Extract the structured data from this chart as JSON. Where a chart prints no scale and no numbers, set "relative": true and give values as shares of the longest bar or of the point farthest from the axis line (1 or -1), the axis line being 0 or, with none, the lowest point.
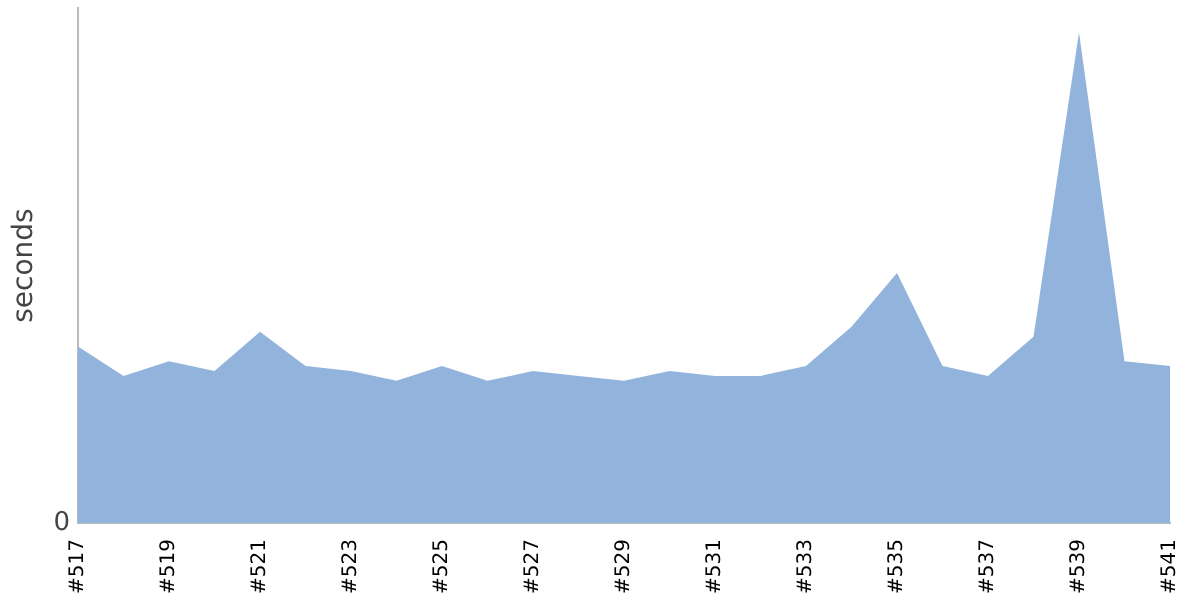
{
  "chart_data": {
    "type": "area",
    "ylabel": "seconds",
    "relative": true,
    "color": "#91b3dc",
    "grid": false,
    "legend": false,
    "categories": [
      "#517",
      null,
      "#519",
      null,
      "#521",
      null,
      "#523",
      null,
      "#525",
      null,
      "#527",
      null,
      "#529",
      null,
      "#531",
      null,
      "#533",
      null,
      "#535",
      null,
      "#537",
      null,
      "#539",
      null,
      "#541"
    ],
    "values": [
      0.36,
      0.3,
      0.33,
      0.31,
      0.39,
      0.32,
      0.31,
      0.29,
      0.32,
      0.29,
      0.31,
      0.3,
      0.29,
      0.31,
      0.3,
      0.3,
      0.32,
      0.4,
      0.51,
      0.32,
      0.3,
      0.38,
      1,
      0.33,
      0.32
    ],
    "annotations": [
      "0"
    ]
  }
}
